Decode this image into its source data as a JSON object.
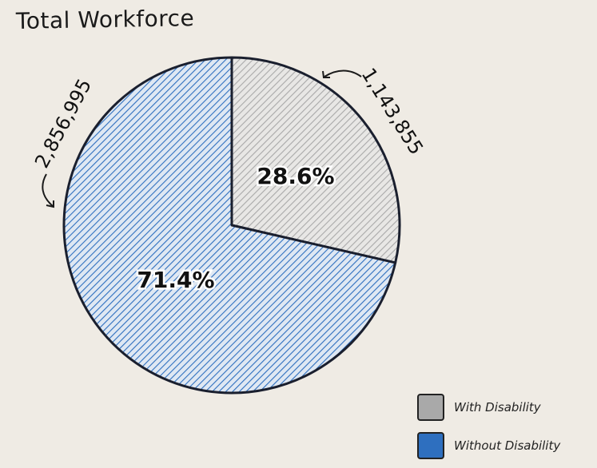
{
  "chart_data": {
    "type": "pie",
    "title": "Total Workforce",
    "slices": [
      {
        "name": "With Disability",
        "value": 1143855,
        "value_label": "1,143,855",
        "percent_label": "28.6%",
        "color": "#a9a9a9",
        "fill_bg": "#e8e7e5"
      },
      {
        "name": "Without Disability",
        "value": 2856995,
        "value_label": "2,856,995",
        "percent_label": "71.4%",
        "color": "#2e6fbf",
        "fill_bg": "#dfe8f3"
      }
    ],
    "legend_position": "bottom-right"
  }
}
